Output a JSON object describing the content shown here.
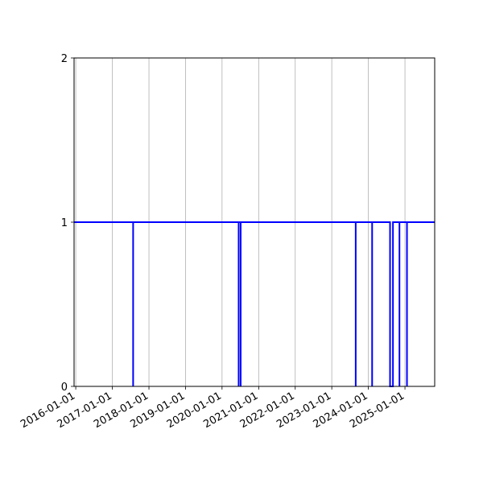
{
  "chart_data": {
    "type": "line",
    "title": "",
    "xlabel": "",
    "ylabel": "",
    "xlim": [
      "2015-12-15",
      "2025-10-25"
    ],
    "ylim": [
      0,
      2
    ],
    "grid": "vertical",
    "line_color": "#0000ff",
    "x_ticks": [
      "2016-01-01",
      "2017-01-01",
      "2018-01-01",
      "2019-01-01",
      "2020-01-01",
      "2021-01-01",
      "2022-01-01",
      "2023-01-01",
      "2024-01-01",
      "2025-01-01"
    ],
    "y_ticks": [
      "0",
      "1",
      "2"
    ],
    "series": [
      {
        "x": [
          "2015-12-15",
          "2017-07-27",
          "2017-07-27",
          "2017-07-27",
          "2020-06-15",
          "2020-06-15",
          "2020-06-15",
          "2020-07-05",
          "2020-07-05",
          "2020-07-05",
          "2023-08-28",
          "2023-08-28",
          "2023-08-28",
          "2024-02-08",
          "2024-02-08",
          "2024-02-08",
          "2024-08-05",
          "2024-08-05",
          "2024-08-15",
          "2024-08-25",
          "2024-09-03",
          "2024-09-03",
          "2024-11-07",
          "2024-11-07",
          "2024-11-07",
          "2025-01-21",
          "2025-01-21",
          "2025-01-21",
          "2025-10-25"
        ],
        "y": [
          1,
          1,
          0,
          1,
          1,
          0,
          1,
          1,
          0,
          1,
          1,
          0,
          1,
          1,
          0,
          1,
          1,
          0,
          0,
          0,
          0,
          1,
          1,
          0,
          1,
          1,
          0,
          1,
          1
        ]
      }
    ]
  }
}
